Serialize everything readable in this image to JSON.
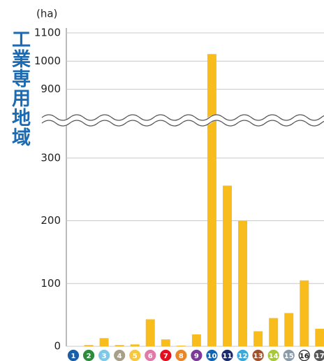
{
  "chart_data": {
    "type": "bar",
    "y_label": "工業専用地域",
    "unit": "(ha)",
    "categories": [
      "1",
      "2",
      "3",
      "4",
      "5",
      "6",
      "7",
      "8",
      "9",
      "10",
      "11",
      "12",
      "13",
      "14",
      "15",
      "16",
      "17"
    ],
    "category_colors": [
      "#1a5fa8",
      "#2e8b3e",
      "#7fc8e8",
      "#a89f88",
      "#f5c742",
      "#e07aa8",
      "#e0101e",
      "#e8862a",
      "#7a3b96",
      "#1464b4",
      "#1a2a6a",
      "#3aa8d8",
      "#a0522d",
      "#a6c83a",
      "#8a9aa8",
      "#ffffff",
      "#555555"
    ],
    "values": [
      0,
      2,
      13,
      2,
      3,
      43,
      11,
      1,
      19,
      1025,
      256,
      200,
      24,
      45,
      53,
      105,
      28
    ],
    "color": "#f8bd1c",
    "ylim": [
      0,
      1100
    ],
    "axis_break": [
      360,
      790
    ],
    "yticks": [
      0,
      100,
      200,
      300,
      900,
      1000,
      1100
    ],
    "grid": true
  }
}
